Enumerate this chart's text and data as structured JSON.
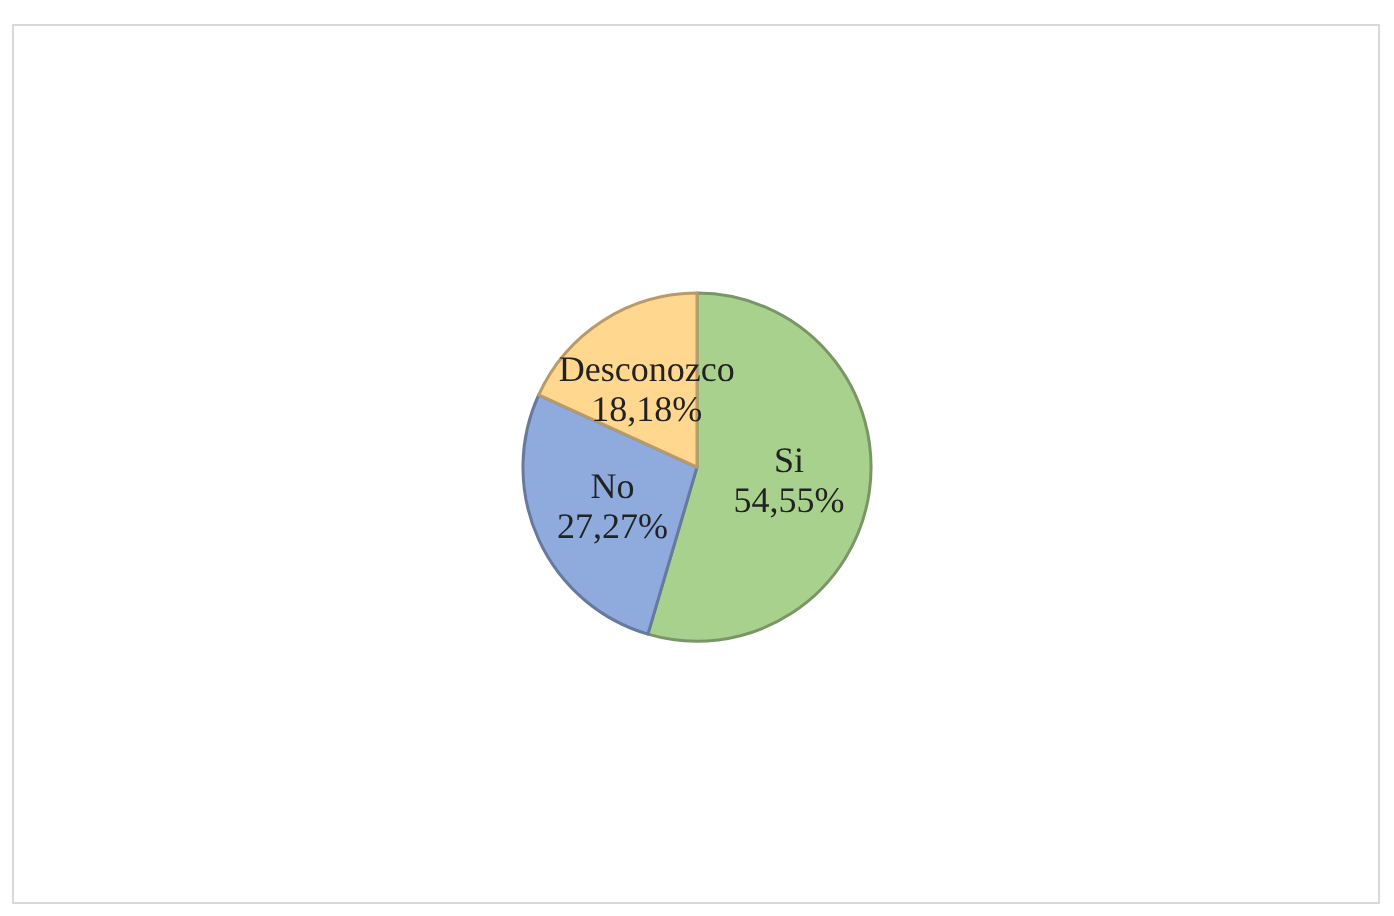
{
  "chart_data": {
    "type": "pie",
    "categories": [
      "Si",
      "No",
      "Desconozco"
    ],
    "values": [
      54.55,
      27.27,
      18.18
    ],
    "colors": [
      "#a9d18e",
      "#8faadc",
      "#ffd78f"
    ],
    "value_labels": [
      "54,55%",
      "27,27%",
      "18,18%"
    ],
    "legend": false
  }
}
